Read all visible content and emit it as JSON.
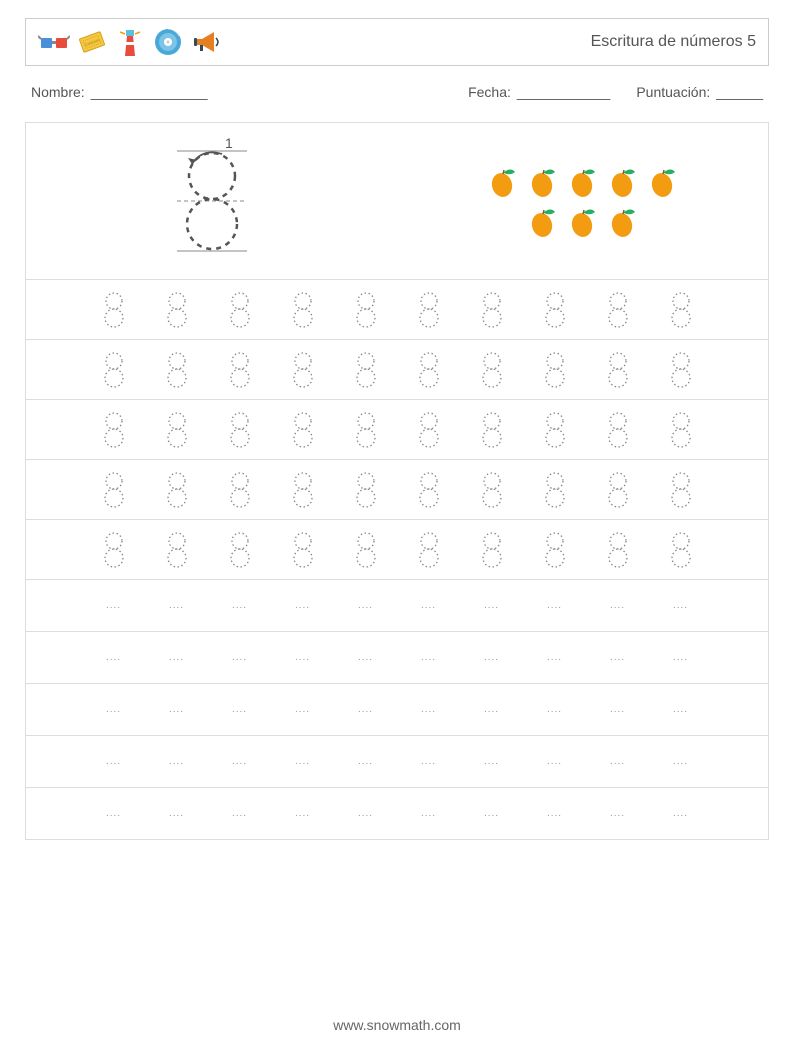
{
  "header": {
    "title": "Escritura de números 5",
    "icons": [
      "glasses-3d",
      "cinema-ticket",
      "lighthouse",
      "cd-disc",
      "megaphone"
    ],
    "icon_colors": {
      "glasses_blue": "#4a90d9",
      "glasses_red": "#e74c3c",
      "ticket": "#f5c842",
      "lighthouse": "#e74c3c",
      "lighthouse_light": "#5bc0de",
      "cd": "#4aa8d8",
      "megaphone": "#e67e22",
      "megaphone_dark": "#34495e"
    }
  },
  "meta": {
    "name_label": "Nombre:",
    "name_blank": "_______________",
    "date_label": "Fecha:",
    "date_blank": "____________",
    "score_label": "Puntuación:",
    "score_blank": "______"
  },
  "demo": {
    "target_number": 8,
    "stroke_label": "1",
    "trace_color": "#555555",
    "guide_line_color": "#888888",
    "arrow_color": "#555555",
    "mango_count": 8,
    "mango_rows": [
      5,
      3
    ],
    "mango_body_color": "#f39c12",
    "mango_leaf_color": "#27ae60"
  },
  "practice": {
    "traced_rows": 5,
    "blank_rows": 5,
    "cols": 10,
    "digit_stroke_color": "#888888",
    "digit_dash": "1.5,2.5",
    "blank_marker": "...."
  },
  "footer": {
    "text": "www.snowmath.com"
  },
  "colors": {
    "border": "#dddddd",
    "header_border": "#cccccc",
    "text": "#555555",
    "background": "#ffffff"
  }
}
